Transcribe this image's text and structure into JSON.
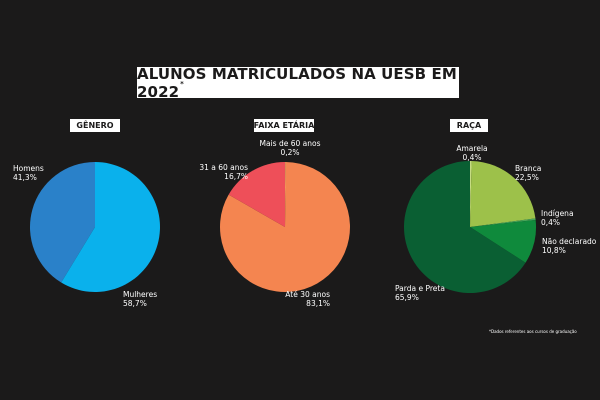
{
  "title": "ALUNOS MATRICULADOS NA UESB EM 2022",
  "title_mark": "*",
  "footnote": "*Dados referentes aos cursos de graduação",
  "chart_data": [
    {
      "type": "pie",
      "title": "GÊNERO",
      "slices": [
        {
          "label": "Homens",
          "value_text": "41,3%",
          "value": 41.3,
          "color": "#2a81c9"
        },
        {
          "label": "Mulheres",
          "value_text": "58,7%",
          "value": 58.7,
          "color": "#0ab1ec"
        }
      ]
    },
    {
      "type": "pie",
      "title": "FAIXA ETÁRIA",
      "slices": [
        {
          "label": "Mais de 60 anos",
          "value_text": "0,2%",
          "value": 0.2,
          "color": "#f4a261"
        },
        {
          "label": "Até 30 anos",
          "value_text": "83,1%",
          "value": 83.1,
          "color": "#f48550"
        },
        {
          "label": "31 a 60 anos",
          "value_text": "16,7%",
          "value": 16.7,
          "color": "#ee4f59"
        }
      ]
    },
    {
      "type": "pie",
      "title": "RAÇA",
      "slices": [
        {
          "label": "Amarela",
          "value_text": "0,4%",
          "value": 0.4,
          "color": "#c6dc82"
        },
        {
          "label": "Branca",
          "value_text": "22,5%",
          "value": 22.5,
          "color": "#9dc14a"
        },
        {
          "label": "Indígena",
          "value_text": "0,4%",
          "value": 0.4,
          "color": "#45a558"
        },
        {
          "label": "Não declarado",
          "value_text": "10,8%",
          "value": 10.8,
          "color": "#0f8a3c"
        },
        {
          "label": "Parda e Preta",
          "value_text": "65,9%",
          "value": 65.9,
          "color": "#0a5f33"
        }
      ]
    }
  ]
}
